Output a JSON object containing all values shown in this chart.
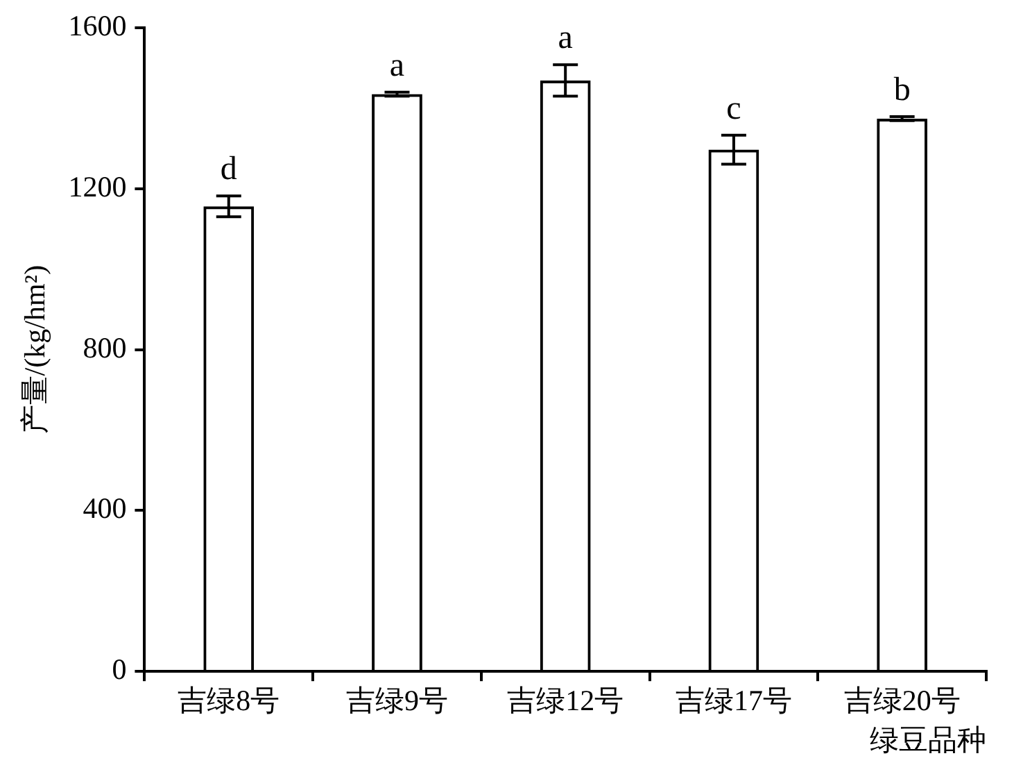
{
  "chart_data": {
    "type": "bar",
    "xlabel": "绿豆品种",
    "ylabel": "产量/(kg/hm²)",
    "categories": [
      "吉绿8号",
      "吉绿9号",
      "吉绿12号",
      "吉绿17号",
      "吉绿20号"
    ],
    "values": [
      1156,
      1435,
      1469,
      1297,
      1374
    ],
    "errors": [
      26,
      5,
      39,
      36,
      5
    ],
    "color": "#000000",
    "ylim": [
      0,
      1600
    ],
    "yticks": [
      0,
      400,
      800,
      1200,
      1600
    ],
    "grid": false,
    "legend": false,
    "annotations": [
      "d",
      "a",
      "a",
      "c",
      "b"
    ]
  }
}
